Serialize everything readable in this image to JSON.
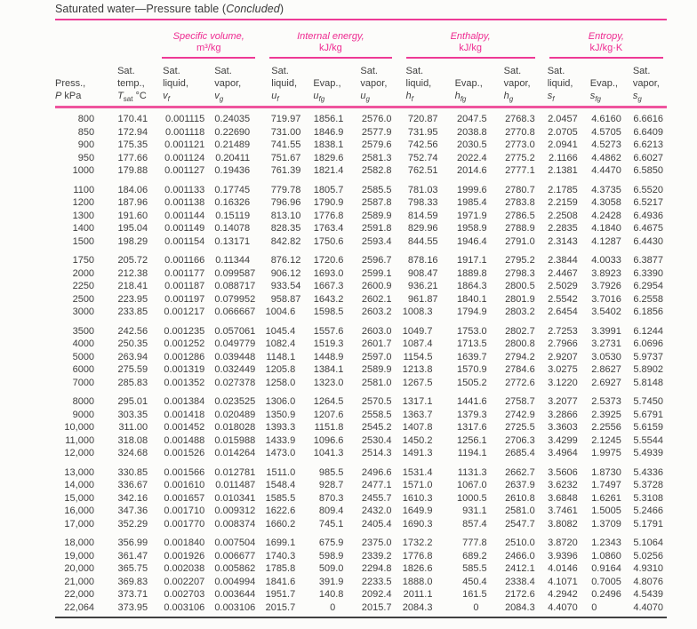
{
  "title": {
    "prefix": "Saturated water—Pressure table (",
    "italic": "Concluded",
    "suffix": ")"
  },
  "colors": {
    "accent_magenta": "#ee2a90",
    "rule_pink": "#ee3a96",
    "rule_thick_pink": "#ef549e",
    "rule_dark": "#414141",
    "text": "#3e3e3e"
  },
  "table": {
    "column_groups": [
      {
        "label": "Specific volume,",
        "unit": "m³/kg",
        "span": 2
      },
      {
        "label": "Internal energy,",
        "unit": "kJ/kg",
        "span": 3
      },
      {
        "label": "Enthalpy,",
        "unit": "kJ/kg",
        "span": 3
      },
      {
        "label": "Entropy,",
        "unit": "kJ/kg·K",
        "span": 3
      }
    ],
    "columns": [
      {
        "key": "pressure",
        "line1": "",
        "line2": "Press.,",
        "sym": "P",
        "sub": "",
        "subItalic": false,
        "after": " kPa"
      },
      {
        "key": "sat-temp",
        "line1": "Sat.",
        "line2": "temp.,",
        "sym": "T",
        "sub": "sat",
        "subItalic": false,
        "after": " °C"
      },
      {
        "key": "vf",
        "line1": "Sat.",
        "line2": "liquid,",
        "sym": "v",
        "sub": "f",
        "subItalic": true,
        "after": ""
      },
      {
        "key": "vg",
        "line1": "Sat.",
        "line2": "vapor,",
        "sym": "v",
        "sub": "g",
        "subItalic": true,
        "after": ""
      },
      {
        "key": "uf",
        "line1": "Sat.",
        "line2": "liquid,",
        "sym": "u",
        "sub": "f",
        "subItalic": true,
        "after": ""
      },
      {
        "key": "ufg",
        "line1": "",
        "line2": "Evap.,",
        "sym": "u",
        "sub": "fg",
        "subItalic": true,
        "after": ""
      },
      {
        "key": "ug",
        "line1": "Sat.",
        "line2": "vapor,",
        "sym": "u",
        "sub": "g",
        "subItalic": true,
        "after": ""
      },
      {
        "key": "hf",
        "line1": "Sat.",
        "line2": "liquid,",
        "sym": "h",
        "sub": "f",
        "subItalic": true,
        "after": ""
      },
      {
        "key": "hfg",
        "line1": "",
        "line2": "Evap.,",
        "sym": "h",
        "sub": "fg",
        "subItalic": true,
        "after": ""
      },
      {
        "key": "hg",
        "line1": "Sat.",
        "line2": "vapor,",
        "sym": "h",
        "sub": "g",
        "subItalic": true,
        "after": ""
      },
      {
        "key": "sf",
        "line1": "Sat.",
        "line2": "liquid,",
        "sym": "s",
        "sub": "f",
        "subItalic": true,
        "after": ""
      },
      {
        "key": "sfg",
        "line1": "",
        "line2": "Evap.,",
        "sym": "s",
        "sub": "fg",
        "subItalic": true,
        "after": ""
      },
      {
        "key": "sg",
        "line1": "Sat.",
        "line2": "vapor,",
        "sym": "s",
        "sub": "g",
        "subItalic": true,
        "after": ""
      }
    ],
    "row_groups": [
      [
        [
          "800",
          "170.41",
          "0.001115",
          "0.24035",
          "719.97",
          "1856.1",
          "2576.0",
          "720.87",
          "2047.5",
          "2768.3",
          "2.0457",
          "4.6160",
          "6.6616"
        ],
        [
          "850",
          "172.94",
          "0.001118",
          "0.22690",
          "731.00",
          "1846.9",
          "2577.9",
          "731.95",
          "2038.8",
          "2770.8",
          "2.0705",
          "4.5705",
          "6.6409"
        ],
        [
          "900",
          "175.35",
          "0.001121",
          "0.21489",
          "741.55",
          "1838.1",
          "2579.6",
          "742.56",
          "2030.5",
          "2773.0",
          "2.0941",
          "4.5273",
          "6.6213"
        ],
        [
          "950",
          "177.66",
          "0.001124",
          "0.20411",
          "751.67",
          "1829.6",
          "2581.3",
          "752.74",
          "2022.4",
          "2775.2",
          "2.1166",
          "4.4862",
          "6.6027"
        ],
        [
          "1000",
          "179.88",
          "0.001127",
          "0.19436",
          "761.39",
          "1821.4",
          "2582.8",
          "762.51",
          "2014.6",
          "2777.1",
          "2.1381",
          "4.4470",
          "6.5850"
        ]
      ],
      [
        [
          "1100",
          "184.06",
          "0.001133",
          "0.17745",
          "779.78",
          "1805.7",
          "2585.5",
          "781.03",
          "1999.6",
          "2780.7",
          "2.1785",
          "4.3735",
          "6.5520"
        ],
        [
          "1200",
          "187.96",
          "0.001138",
          "0.16326",
          "796.96",
          "1790.9",
          "2587.8",
          "798.33",
          "1985.4",
          "2783.8",
          "2.2159",
          "4.3058",
          "6.5217"
        ],
        [
          "1300",
          "191.60",
          "0.001144",
          "0.15119",
          "813.10",
          "1776.8",
          "2589.9",
          "814.59",
          "1971.9",
          "2786.5",
          "2.2508",
          "4.2428",
          "6.4936"
        ],
        [
          "1400",
          "195.04",
          "0.001149",
          "0.14078",
          "828.35",
          "1763.4",
          "2591.8",
          "829.96",
          "1958.9",
          "2788.9",
          "2.2835",
          "4.1840",
          "6.4675"
        ],
        [
          "1500",
          "198.29",
          "0.001154",
          "0.13171",
          "842.82",
          "1750.6",
          "2593.4",
          "844.55",
          "1946.4",
          "2791.0",
          "2.3143",
          "4.1287",
          "6.4430"
        ]
      ],
      [
        [
          "1750",
          "205.72",
          "0.001166",
          "0.11344",
          "876.12",
          "1720.6",
          "2596.7",
          "878.16",
          "1917.1",
          "2795.2",
          "2.3844",
          "4.0033",
          "6.3877"
        ],
        [
          "2000",
          "212.38",
          "0.001177",
          "0.099587",
          "906.12",
          "1693.0",
          "2599.1",
          "908.47",
          "1889.8",
          "2798.3",
          "2.4467",
          "3.8923",
          "6.3390"
        ],
        [
          "2250",
          "218.41",
          "0.001187",
          "0.088717",
          "933.54",
          "1667.3",
          "2600.9",
          "936.21",
          "1864.3",
          "2800.5",
          "2.5029",
          "3.7926",
          "6.2954"
        ],
        [
          "2500",
          "223.95",
          "0.001197",
          "0.079952",
          "958.87",
          "1643.2",
          "2602.1",
          "961.87",
          "1840.1",
          "2801.9",
          "2.5542",
          "3.7016",
          "6.2558"
        ],
        [
          "3000",
          "233.85",
          "0.001217",
          "0.066667",
          "1004.6",
          "1598.5",
          "2603.2",
          "1008.3",
          "1794.9",
          "2803.2",
          "2.6454",
          "3.5402",
          "6.1856"
        ]
      ],
      [
        [
          "3500",
          "242.56",
          "0.001235",
          "0.057061",
          "1045.4",
          "1557.6",
          "2603.0",
          "1049.7",
          "1753.0",
          "2802.7",
          "2.7253",
          "3.3991",
          "6.1244"
        ],
        [
          "4000",
          "250.35",
          "0.001252",
          "0.049779",
          "1082.4",
          "1519.3",
          "2601.7",
          "1087.4",
          "1713.5",
          "2800.8",
          "2.7966",
          "3.2731",
          "6.0696"
        ],
        [
          "5000",
          "263.94",
          "0.001286",
          "0.039448",
          "1148.1",
          "1448.9",
          "2597.0",
          "1154.5",
          "1639.7",
          "2794.2",
          "2.9207",
          "3.0530",
          "5.9737"
        ],
        [
          "6000",
          "275.59",
          "0.001319",
          "0.032449",
          "1205.8",
          "1384.1",
          "2589.9",
          "1213.8",
          "1570.9",
          "2784.6",
          "3.0275",
          "2.8627",
          "5.8902"
        ],
        [
          "7000",
          "285.83",
          "0.001352",
          "0.027378",
          "1258.0",
          "1323.0",
          "2581.0",
          "1267.5",
          "1505.2",
          "2772.6",
          "3.1220",
          "2.6927",
          "5.8148"
        ]
      ],
      [
        [
          "8000",
          "295.01",
          "0.001384",
          "0.023525",
          "1306.0",
          "1264.5",
          "2570.5",
          "1317.1",
          "1441.6",
          "2758.7",
          "3.2077",
          "2.5373",
          "5.7450"
        ],
        [
          "9000",
          "303.35",
          "0.001418",
          "0.020489",
          "1350.9",
          "1207.6",
          "2558.5",
          "1363.7",
          "1379.3",
          "2742.9",
          "3.2866",
          "2.3925",
          "5.6791"
        ],
        [
          "10,000",
          "311.00",
          "0.001452",
          "0.018028",
          "1393.3",
          "1151.8",
          "2545.2",
          "1407.8",
          "1317.6",
          "2725.5",
          "3.3603",
          "2.2556",
          "5.6159"
        ],
        [
          "11,000",
          "318.08",
          "0.001488",
          "0.015988",
          "1433.9",
          "1096.6",
          "2530.4",
          "1450.2",
          "1256.1",
          "2706.3",
          "3.4299",
          "2.1245",
          "5.5544"
        ],
        [
          "12,000",
          "324.68",
          "0.001526",
          "0.014264",
          "1473.0",
          "1041.3",
          "2514.3",
          "1491.3",
          "1194.1",
          "2685.4",
          "3.4964",
          "1.9975",
          "5.4939"
        ]
      ],
      [
        [
          "13,000",
          "330.85",
          "0.001566",
          "0.012781",
          "1511.0",
          "985.5",
          "2496.6",
          "1531.4",
          "1131.3",
          "2662.7",
          "3.5606",
          "1.8730",
          "5.4336"
        ],
        [
          "14,000",
          "336.67",
          "0.001610",
          "0.011487",
          "1548.4",
          "928.7",
          "2477.1",
          "1571.0",
          "1067.0",
          "2637.9",
          "3.6232",
          "1.7497",
          "5.3728"
        ],
        [
          "15,000",
          "342.16",
          "0.001657",
          "0.010341",
          "1585.5",
          "870.3",
          "2455.7",
          "1610.3",
          "1000.5",
          "2610.8",
          "3.6848",
          "1.6261",
          "5.3108"
        ],
        [
          "16,000",
          "347.36",
          "0.001710",
          "0.009312",
          "1622.6",
          "809.4",
          "2432.0",
          "1649.9",
          "931.1",
          "2581.0",
          "3.7461",
          "1.5005",
          "5.2466"
        ],
        [
          "17,000",
          "352.29",
          "0.001770",
          "0.008374",
          "1660.2",
          "745.1",
          "2405.4",
          "1690.3",
          "857.4",
          "2547.7",
          "3.8082",
          "1.3709",
          "5.1791"
        ]
      ],
      [
        [
          "18,000",
          "356.99",
          "0.001840",
          "0.007504",
          "1699.1",
          "675.9",
          "2375.0",
          "1732.2",
          "777.8",
          "2510.0",
          "3.8720",
          "1.2343",
          "5.1064"
        ],
        [
          "19,000",
          "361.47",
          "0.001926",
          "0.006677",
          "1740.3",
          "598.9",
          "2339.2",
          "1776.8",
          "689.2",
          "2466.0",
          "3.9396",
          "1.0860",
          "5.0256"
        ],
        [
          "20,000",
          "365.75",
          "0.002038",
          "0.005862",
          "1785.8",
          "509.0",
          "2294.8",
          "1826.6",
          "585.5",
          "2412.1",
          "4.0146",
          "0.9164",
          "4.9310"
        ],
        [
          "21,000",
          "369.83",
          "0.002207",
          "0.004994",
          "1841.6",
          "391.9",
          "2233.5",
          "1888.0",
          "450.4",
          "2338.4",
          "4.1071",
          "0.7005",
          "4.8076"
        ],
        [
          "22,000",
          "373.71",
          "0.002703",
          "0.003644",
          "1951.7",
          "140.8",
          "2092.4",
          "2011.1",
          "161.5",
          "2172.6",
          "4.2942",
          "0.2496",
          "4.5439"
        ],
        [
          "22,064",
          "373.95",
          "0.003106",
          "0.003106",
          "2015.7",
          "0",
          "2015.7",
          "2084.3",
          "0",
          "2084.3",
          "4.4070",
          "0",
          "4.4070"
        ]
      ]
    ]
  }
}
